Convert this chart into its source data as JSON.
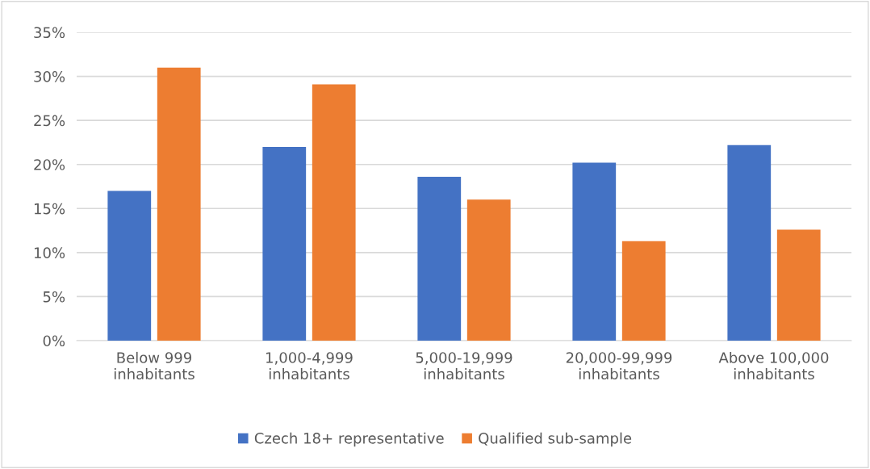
{
  "chart_data": {
    "type": "bar",
    "categories": [
      "Below 999\ninhabitants",
      "1,000-4,999\ninhabitants",
      "5,000-19,999\ninhabitants",
      "20,000-99,999\ninhabitants",
      "Above 100,000\ninhabitants"
    ],
    "series": [
      {
        "name": "Czech 18+ representative",
        "color": "#4472c4",
        "values": [
          17.0,
          22.0,
          18.6,
          20.2,
          22.2
        ]
      },
      {
        "name": "Qualified sub-sample",
        "color": "#ed7d31",
        "values": [
          31.0,
          29.1,
          16.0,
          11.3,
          12.6
        ]
      }
    ],
    "ylim": [
      0,
      35
    ],
    "yticks": [
      {
        "value": 0,
        "label": "0%"
      },
      {
        "value": 5,
        "label": "5%"
      },
      {
        "value": 10,
        "label": "10%"
      },
      {
        "value": 15,
        "label": "15%"
      },
      {
        "value": 20,
        "label": "20%"
      },
      {
        "value": 25,
        "label": "25%"
      },
      {
        "value": 30,
        "label": "30%"
      },
      {
        "value": 35,
        "label": "35%"
      }
    ],
    "grid": "y",
    "legend": "bottom"
  }
}
